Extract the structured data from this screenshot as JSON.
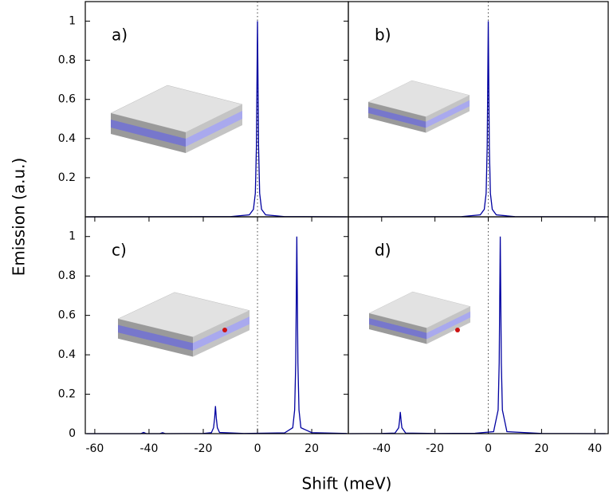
{
  "figure": {
    "xlabel": "Shift (meV)",
    "ylabel": "Emission (a.u.)"
  },
  "chart_data": [
    {
      "type": "line",
      "panel_label": "a)",
      "color": "#0000a0",
      "vline": 0,
      "xlim": [
        -63.5,
        33.5
      ],
      "ylim": [
        0,
        1.1
      ],
      "yticks": [
        0.2,
        0.4,
        0.6,
        0.8,
        1
      ],
      "x": [
        -63,
        -10,
        -3,
        -1.5,
        -0.8,
        -0.4,
        0,
        0.4,
        0.8,
        1.5,
        3,
        10,
        33
      ],
      "values": [
        0,
        0.001,
        0.01,
        0.038,
        0.12,
        0.36,
        1,
        0.36,
        0.12,
        0.038,
        0.01,
        0.001,
        0
      ]
    },
    {
      "type": "line",
      "panel_label": "b)",
      "color": "#0000a0",
      "vline": 0,
      "xlim": [
        -52.5,
        45
      ],
      "ylim": [
        0,
        1.1
      ],
      "x": [
        -52,
        -10,
        -3,
        -1.5,
        -0.8,
        -0.4,
        0,
        0.4,
        0.8,
        1.5,
        3,
        10,
        44
      ],
      "values": [
        0,
        0.001,
        0.01,
        0.038,
        0.12,
        0.36,
        1,
        0.36,
        0.12,
        0.038,
        0.01,
        0.001,
        0
      ]
    },
    {
      "type": "line",
      "panel_label": "c)",
      "color": "#0000a0",
      "vline": 0,
      "xlim": [
        -63.5,
        33.5
      ],
      "ylim": [
        0,
        1.1
      ],
      "xticks": [
        -60,
        -40,
        -20,
        0,
        20
      ],
      "yticks": [
        0,
        0.2,
        0.4,
        0.6,
        0.8,
        1
      ],
      "x": [
        -63,
        -43,
        -42,
        -41,
        -36,
        -35,
        -34,
        -20,
        -17,
        -16.2,
        -15.8,
        -15.5,
        -15.2,
        -14.8,
        -14,
        -5,
        10,
        13,
        13.7,
        14.1,
        14.5,
        14.9,
        15.3,
        16,
        20,
        33
      ],
      "values": [
        0,
        0,
        0.006,
        0,
        0,
        0.005,
        0,
        0.001,
        0.005,
        0.03,
        0.08,
        0.14,
        0.08,
        0.03,
        0.006,
        0.001,
        0.004,
        0.03,
        0.12,
        0.36,
        1,
        0.36,
        0.12,
        0.03,
        0.005,
        0.001
      ]
    },
    {
      "type": "line",
      "panel_label": "d)",
      "color": "#0000a0",
      "vline": 0,
      "xlim": [
        -52.5,
        45
      ],
      "ylim": [
        0,
        1.1
      ],
      "xticks": [
        -40,
        -20,
        0,
        20,
        40
      ],
      "x": [
        -52,
        -40,
        -35,
        -33.6,
        -33.3,
        -33,
        -32.7,
        -32.4,
        -31,
        -20,
        -5,
        2,
        3.7,
        4.1,
        4.5,
        4.9,
        5.3,
        7,
        20,
        44
      ],
      "values": [
        0,
        0.001,
        0.003,
        0.03,
        0.065,
        0.11,
        0.065,
        0.03,
        0.003,
        0.001,
        0.002,
        0.01,
        0.12,
        0.36,
        1,
        0.36,
        0.12,
        0.01,
        0.001,
        0
      ]
    }
  ]
}
